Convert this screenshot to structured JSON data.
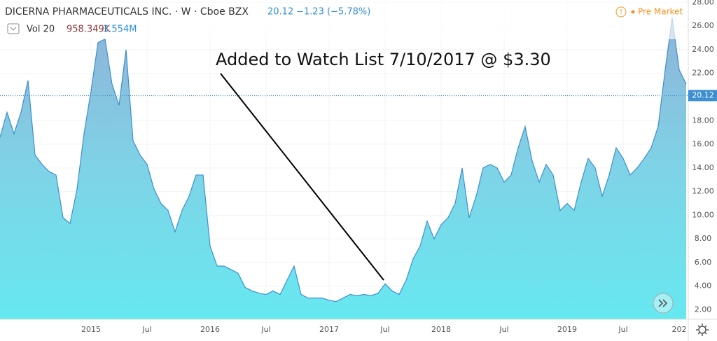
{
  "chart_data": {
    "type": "area",
    "title": "DICERNA PHARMACEUTICALS INC. · W · Cboe BZX",
    "last_price": 20.12,
    "change": "−1.23 (−5.78%)",
    "session": "Pre Market",
    "volume_label": "Vol 20",
    "volume_values": [
      "958.349K",
      "3.554M"
    ],
    "annotation": "Added to Watch List 7/10/2017 @ $3.30",
    "categories": [
      null,
      null,
      null,
      null,
      null,
      null,
      null,
      null,
      null,
      null,
      null,
      null,
      null,
      "2015",
      null,
      null,
      null,
      null,
      null,
      null,
      null,
      "Jul",
      null,
      null,
      null,
      null,
      null,
      null,
      null,
      null,
      "2016",
      null,
      null,
      null,
      null,
      null,
      null,
      null,
      "Jul",
      null,
      null,
      null,
      null,
      null,
      null,
      null,
      null,
      "2017",
      null,
      null,
      null,
      null,
      null,
      null,
      null,
      "Jul",
      null,
      null,
      null,
      null,
      null,
      null,
      null,
      "2018",
      null,
      null,
      null,
      null,
      null,
      null,
      null,
      null,
      "Jul",
      null,
      null,
      null,
      null,
      null,
      null,
      null,
      null,
      "2019",
      null,
      null,
      null,
      null,
      null,
      null,
      null,
      "Jul",
      null,
      null,
      null,
      null,
      null,
      null,
      null,
      "202",
      null
    ],
    "series": [
      {
        "color": "#3d8fd1",
        "values": [
          16.6,
          18.7,
          16.9,
          18.7,
          21.4,
          15.1,
          14.3,
          13.7,
          13.4,
          9.8,
          9.3,
          12.2,
          16.9,
          20.5,
          24.6,
          24.9,
          21.1,
          19.3,
          24.0,
          16.3,
          15.1,
          14.3,
          12.2,
          11.0,
          10.4,
          8.6,
          10.4,
          11.6,
          13.4,
          13.4,
          7.4,
          5.7,
          5.7,
          5.4,
          5.1,
          3.9,
          3.6,
          3.4,
          3.3,
          3.6,
          3.3,
          4.5,
          5.7,
          3.3,
          3.0,
          3.0,
          3.0,
          2.8,
          2.7,
          3.0,
          3.3,
          3.2,
          3.3,
          3.2,
          3.4,
          4.2,
          3.6,
          3.3,
          4.5,
          6.3,
          7.4,
          9.5,
          8.0,
          9.2,
          9.8,
          11.0,
          14.0,
          9.8,
          11.6,
          14.0,
          14.3,
          14.0,
          12.8,
          13.4,
          15.7,
          17.5,
          14.6,
          12.8,
          14.3,
          13.4,
          10.4,
          11.0,
          10.4,
          12.8,
          14.8,
          14.0,
          11.6,
          13.4,
          15.7,
          14.8,
          13.4,
          14.0,
          14.8,
          15.7,
          17.5,
          22.3,
          26.7,
          22.3,
          21.1
        ]
      }
    ],
    "ylim": [
      1.2,
      28.2
    ],
    "yticks": [
      {
        "value": 2,
        "label": "2.00"
      },
      {
        "value": 4,
        "label": "4.00"
      },
      {
        "value": 6,
        "label": "6.00"
      },
      {
        "value": 8,
        "label": "8.00"
      },
      {
        "value": 10,
        "label": "10.00"
      },
      {
        "value": 12,
        "label": "12.00"
      },
      {
        "value": 14,
        "label": "14.00"
      },
      {
        "value": 16,
        "label": "16.00"
      },
      {
        "value": 18,
        "label": "18.00"
      },
      {
        "value": 20,
        "label": "20.00"
      },
      {
        "value": 22,
        "label": "22.00"
      },
      {
        "value": 24,
        "label": "24.00"
      },
      {
        "value": 26,
        "label": "26.00"
      },
      {
        "value": 28,
        "label": "28.00"
      }
    ],
    "grid": true
  }
}
